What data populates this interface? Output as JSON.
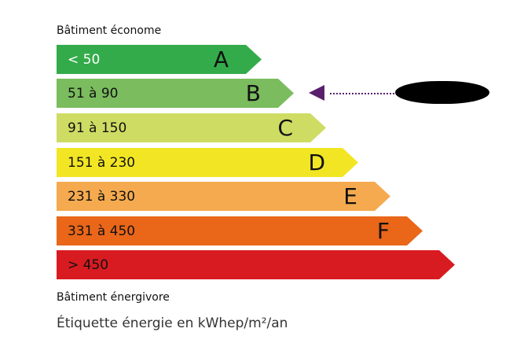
{
  "top_caption": "Bâtiment économe",
  "bottom_caption": "Bâtiment énergivore",
  "footer": "Étiquette énergie en kWhep/m²/an",
  "classes": [
    {
      "letter": "A",
      "range": "< 50",
      "color": "#33ab4a",
      "text_color": "#ffffff"
    },
    {
      "letter": "B",
      "range": "51 à 90",
      "color": "#7bbc5e",
      "text_color": "#111111"
    },
    {
      "letter": "C",
      "range": "91 à 150",
      "color": "#cfdc64",
      "text_color": "#111111"
    },
    {
      "letter": "D",
      "range": "151 à 230",
      "color": "#f2e624",
      "text_color": "#111111"
    },
    {
      "letter": "E",
      "range": "231 à 330",
      "color": "#f5aa4f",
      "text_color": "#111111"
    },
    {
      "letter": "F",
      "range": "331 à 450",
      "color": "#ea6619",
      "text_color": "#111111"
    },
    {
      "letter": "",
      "range": "> 450",
      "color": "#d81b21",
      "text_color": "#111111"
    }
  ],
  "indicator": {
    "class": "B",
    "color": "#5a1e6e",
    "value_redacted": true
  }
}
